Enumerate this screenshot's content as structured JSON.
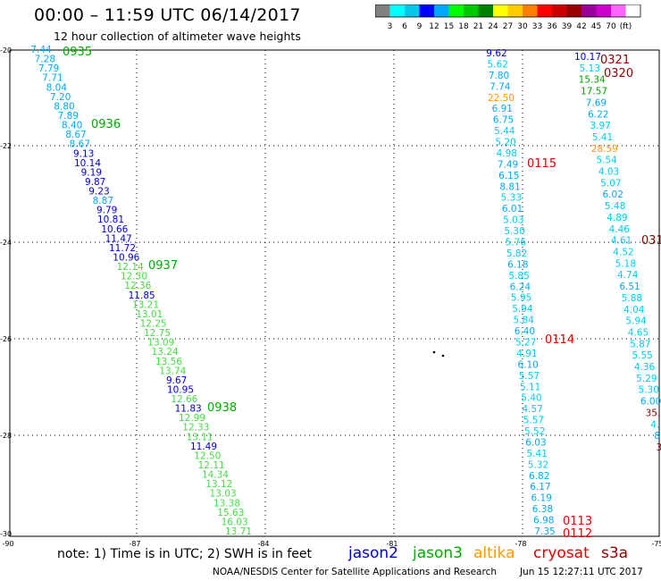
{
  "header": {
    "title": "00:00 – 11:59 UTC 06/14/2017",
    "subtitle": "12 hour collection of altimeter wave heights"
  },
  "legend": {
    "colors": [
      "#808080",
      "#00ffff",
      "#00c8e6",
      "#0000ff",
      "#00aaff",
      "#00ff00",
      "#00c800",
      "#008000",
      "#ffff00",
      "#ffcc00",
      "#ff8000",
      "#ff0000",
      "#cc0000",
      "#990000",
      "#990099",
      "#cc00cc",
      "#ff66ff",
      "#ffffff"
    ],
    "labels": [
      "3",
      "6",
      "9",
      "12",
      "15",
      "18",
      "21",
      "24",
      "27",
      "30",
      "33",
      "36",
      "39",
      "42",
      "45",
      "70",
      "(ft)"
    ]
  },
  "palette": {
    "jason2": "#0000cc",
    "jason3": "#00aa00",
    "altika": "#ff9900",
    "cryosat": "#dd0000",
    "s3a": "#8b0000",
    "swh_light_blue": "#00aaee",
    "swh_cyan": "#00ccee",
    "swh_green": "#44dd44",
    "swh_dark_blue": "#0000cc"
  },
  "map": {
    "x_ticks": [
      "-90",
      "-87",
      "-84",
      "-81",
      "-78",
      "-75"
    ],
    "y_ticks": [
      "-20",
      "-22",
      "-24",
      "-26",
      "-28",
      "-30"
    ],
    "lon_range": [
      -90,
      -75
    ],
    "lat_range": [
      -30,
      -20
    ]
  },
  "tracks": [
    {
      "name": "west",
      "values": [
        {
          "t": "7.44",
          "c": "swh_light_blue"
        },
        {
          "t": "7.28",
          "c": "swh_light_blue"
        },
        {
          "t": "7.79",
          "c": "swh_light_blue"
        },
        {
          "t": "7.71",
          "c": "swh_light_blue"
        },
        {
          "t": "8.04",
          "c": "swh_light_blue"
        },
        {
          "t": "7.20",
          "c": "swh_light_blue"
        },
        {
          "t": "8.80",
          "c": "swh_light_blue"
        },
        {
          "t": "7.89",
          "c": "swh_light_blue"
        },
        {
          "t": "8.40",
          "c": "swh_light_blue"
        },
        {
          "t": "8.67",
          "c": "swh_light_blue"
        },
        {
          "t": "8.67",
          "c": "swh_light_blue"
        },
        {
          "t": "9.13",
          "c": "swh_dark_blue"
        },
        {
          "t": "10.14",
          "c": "swh_dark_blue"
        },
        {
          "t": "9.19",
          "c": "swh_dark_blue"
        },
        {
          "t": "9.87",
          "c": "swh_dark_blue"
        },
        {
          "t": "9.23",
          "c": "swh_dark_blue"
        },
        {
          "t": "8.87",
          "c": "swh_light_blue"
        },
        {
          "t": "9.79",
          "c": "swh_dark_blue"
        },
        {
          "t": "10.81",
          "c": "swh_dark_blue"
        },
        {
          "t": "10.66",
          "c": "swh_dark_blue"
        },
        {
          "t": "11.47",
          "c": "swh_dark_blue"
        },
        {
          "t": "11.72",
          "c": "swh_dark_blue"
        },
        {
          "t": "10.96",
          "c": "swh_dark_blue"
        },
        {
          "t": "12.14",
          "c": "swh_green"
        },
        {
          "t": "12.30",
          "c": "swh_green"
        },
        {
          "t": "12.36",
          "c": "swh_green"
        },
        {
          "t": "11.85",
          "c": "swh_dark_blue"
        },
        {
          "t": "13.21",
          "c": "swh_green"
        },
        {
          "t": "13.01",
          "c": "swh_green"
        },
        {
          "t": "12.25",
          "c": "swh_green"
        },
        {
          "t": "12.75",
          "c": "swh_green"
        },
        {
          "t": "13.09",
          "c": "swh_green"
        },
        {
          "t": "13.24",
          "c": "swh_green"
        },
        {
          "t": "13.56",
          "c": "swh_green"
        },
        {
          "t": "13.74",
          "c": "swh_green"
        },
        {
          "t": "9.67",
          "c": "swh_dark_blue"
        },
        {
          "t": "10.95",
          "c": "swh_dark_blue"
        },
        {
          "t": "12.66",
          "c": "swh_green"
        },
        {
          "t": "11.83",
          "c": "swh_dark_blue"
        },
        {
          "t": "12.99",
          "c": "swh_green"
        },
        {
          "t": "12.33",
          "c": "swh_green"
        },
        {
          "t": "13.11",
          "c": "swh_green"
        },
        {
          "t": "11.49",
          "c": "swh_dark_blue"
        },
        {
          "t": "12.50",
          "c": "swh_green"
        },
        {
          "t": "12.11",
          "c": "swh_green"
        },
        {
          "t": "14.34",
          "c": "swh_green"
        },
        {
          "t": "13.12",
          "c": "swh_green"
        },
        {
          "t": "13.03",
          "c": "swh_green"
        },
        {
          "t": "13.38",
          "c": "swh_green"
        },
        {
          "t": "15.63",
          "c": "swh_green"
        },
        {
          "t": "16.03",
          "c": "swh_green"
        },
        {
          "t": "13.71",
          "c": "swh_green"
        }
      ]
    },
    {
      "name": "middle",
      "values": [
        {
          "t": "9.62",
          "c": "swh_dark_blue"
        },
        {
          "t": "5.62",
          "c": "swh_cyan"
        },
        {
          "t": "7.80",
          "c": "swh_light_blue"
        },
        {
          "t": "7.74",
          "c": "swh_light_blue"
        },
        {
          "t": "22.50",
          "c": "altika"
        },
        {
          "t": "6.91",
          "c": "swh_light_blue"
        },
        {
          "t": "6.75",
          "c": "swh_light_blue"
        },
        {
          "t": "5.44",
          "c": "swh_cyan"
        },
        {
          "t": "5.20",
          "c": "swh_cyan"
        },
        {
          "t": "4.98",
          "c": "swh_cyan"
        },
        {
          "t": "7.49",
          "c": "swh_light_blue"
        },
        {
          "t": "6.15",
          "c": "swh_light_blue"
        },
        {
          "t": "8.81",
          "c": "swh_light_blue"
        },
        {
          "t": "5.33",
          "c": "swh_cyan"
        },
        {
          "t": "6.01",
          "c": "swh_light_blue"
        },
        {
          "t": "5.03",
          "c": "swh_cyan"
        },
        {
          "t": "5.30",
          "c": "swh_cyan"
        },
        {
          "t": "5.76",
          "c": "swh_cyan"
        },
        {
          "t": "5.82",
          "c": "swh_cyan"
        },
        {
          "t": "6.18",
          "c": "swh_light_blue"
        },
        {
          "t": "5.85",
          "c": "swh_cyan"
        },
        {
          "t": "6.24",
          "c": "swh_light_blue"
        },
        {
          "t": "5.95",
          "c": "swh_cyan"
        },
        {
          "t": "5.94",
          "c": "swh_cyan"
        },
        {
          "t": "5.84",
          "c": "swh_cyan"
        },
        {
          "t": "6.40",
          "c": "swh_light_blue"
        },
        {
          "t": "5.27",
          "c": "swh_cyan"
        },
        {
          "t": "4.91",
          "c": "swh_cyan"
        },
        {
          "t": "6.10",
          "c": "swh_light_blue"
        },
        {
          "t": "5.57",
          "c": "swh_cyan"
        },
        {
          "t": "5.11",
          "c": "swh_cyan"
        },
        {
          "t": "5.40",
          "c": "swh_cyan"
        },
        {
          "t": "4.57",
          "c": "swh_cyan"
        },
        {
          "t": "5.57",
          "c": "swh_cyan"
        },
        {
          "t": "5.52",
          "c": "swh_cyan"
        },
        {
          "t": "6.03",
          "c": "swh_light_blue"
        },
        {
          "t": "5.41",
          "c": "swh_cyan"
        },
        {
          "t": "5.32",
          "c": "swh_cyan"
        },
        {
          "t": "6.82",
          "c": "swh_light_blue"
        },
        {
          "t": "6.17",
          "c": "swh_light_blue"
        },
        {
          "t": "6.19",
          "c": "swh_light_blue"
        },
        {
          "t": "6.38",
          "c": "swh_light_blue"
        },
        {
          "t": "6.98",
          "c": "swh_light_blue"
        },
        {
          "t": "7.35",
          "c": "swh_light_blue"
        }
      ]
    },
    {
      "name": "east",
      "values": [
        {
          "t": "10.17",
          "c": "swh_dark_blue"
        },
        {
          "t": "5.13",
          "c": "swh_cyan"
        },
        {
          "t": "15.34",
          "c": "jason3"
        },
        {
          "t": "17.57",
          "c": "jason3"
        },
        {
          "t": "7.69",
          "c": "swh_light_blue"
        },
        {
          "t": "6.22",
          "c": "swh_light_blue"
        },
        {
          "t": "3.97",
          "c": "swh_cyan"
        },
        {
          "t": "5.41",
          "c": "swh_cyan"
        },
        {
          "t": "28.59",
          "c": "altika"
        },
        {
          "t": "5.54",
          "c": "swh_cyan"
        },
        {
          "t": "4.03",
          "c": "swh_cyan"
        },
        {
          "t": "5.07",
          "c": "swh_cyan"
        },
        {
          "t": "6.02",
          "c": "swh_light_blue"
        },
        {
          "t": "5.48",
          "c": "swh_cyan"
        },
        {
          "t": "4.89",
          "c": "swh_cyan"
        },
        {
          "t": "4.46",
          "c": "swh_cyan"
        },
        {
          "t": "4.61",
          "c": "swh_cyan"
        },
        {
          "t": "4.52",
          "c": "swh_cyan"
        },
        {
          "t": "5.18",
          "c": "swh_cyan"
        },
        {
          "t": "4.74",
          "c": "swh_cyan"
        },
        {
          "t": "6.51",
          "c": "swh_light_blue"
        },
        {
          "t": "5.88",
          "c": "swh_cyan"
        },
        {
          "t": "4.04",
          "c": "swh_cyan"
        },
        {
          "t": "5.94",
          "c": "swh_cyan"
        },
        {
          "t": "4.65",
          "c": "swh_cyan"
        },
        {
          "t": "5.87",
          "c": "swh_cyan"
        },
        {
          "t": "5.55",
          "c": "swh_cyan"
        },
        {
          "t": "4.36",
          "c": "swh_cyan"
        },
        {
          "t": "5.29",
          "c": "swh_cyan"
        },
        {
          "t": "5.30",
          "c": "swh_cyan"
        },
        {
          "t": "6.00",
          "c": "swh_light_blue"
        },
        {
          "t": "35.",
          "c": "s3a"
        },
        {
          "t": "4.",
          "c": "swh_cyan"
        },
        {
          "t": "8",
          "c": "swh_light_blue"
        },
        {
          "t": "3",
          "c": "s3a"
        }
      ]
    }
  ],
  "time_labels": [
    {
      "t": "0935",
      "c": "jason3"
    },
    {
      "t": "0936",
      "c": "jason3"
    },
    {
      "t": "0937",
      "c": "jason3"
    },
    {
      "t": "0938",
      "c": "jason3"
    },
    {
      "t": "0115",
      "c": "cryosat"
    },
    {
      "t": "0114",
      "c": "cryosat"
    },
    {
      "t": "0113",
      "c": "cryosat"
    },
    {
      "t": "0112",
      "c": "cryosat"
    },
    {
      "t": "0321",
      "c": "s3a"
    },
    {
      "t": "0320",
      "c": "s3a"
    },
    {
      "t": "031",
      "c": "s3a"
    }
  ],
  "footer": {
    "note": "note: 1) Time is in UTC; 2) SWH is in feet",
    "satellites": [
      {
        "label": "jason2",
        "c": "jason2"
      },
      {
        "label": "jason3",
        "c": "jason3"
      },
      {
        "label": "altika",
        "c": "altika"
      },
      {
        "label": "cryosat",
        "c": "cryosat"
      },
      {
        "label": "s3a",
        "c": "s3a"
      }
    ],
    "credit": "NOAA/NESDIS Center for Satellite Applications and Research",
    "timestamp": "Jun 15 12:27:11 UTC 2017"
  }
}
